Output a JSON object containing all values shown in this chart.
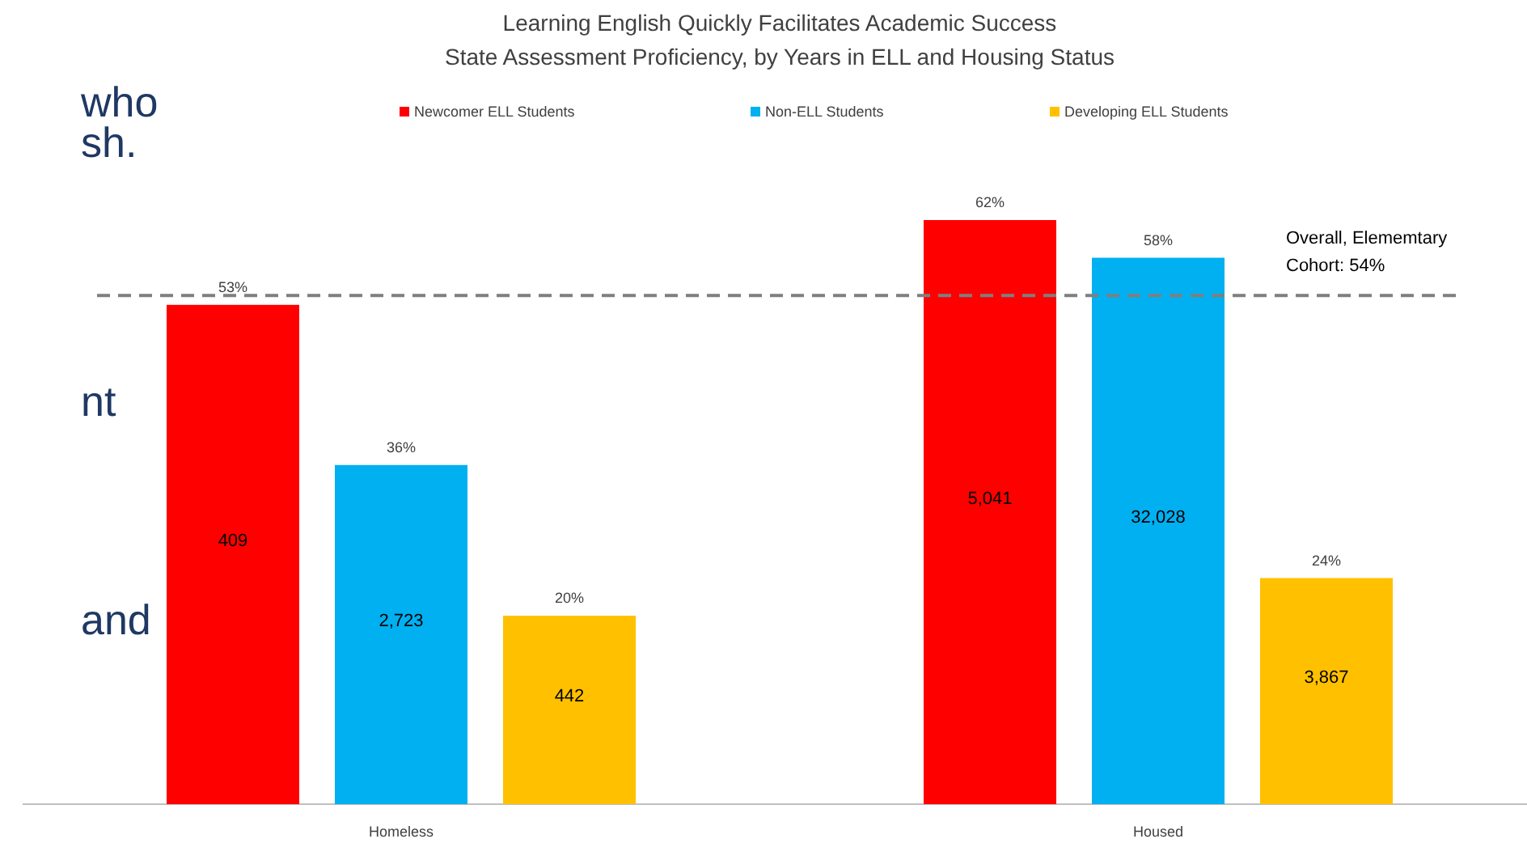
{
  "chart_data": {
    "type": "bar",
    "title": "Learning English Quickly Facilitates Academic Success",
    "subtitle": "State Assessment Proficiency, by Years in ELL and Housing Status",
    "categories": [
      "Homeless",
      "Housed"
    ],
    "series": [
      {
        "name": "Newcomer ELL Students",
        "color": "#ff0000",
        "values": [
          53,
          62
        ],
        "value_labels": [
          "53%",
          "62%"
        ]
      },
      {
        "name": "Non-ELL Students",
        "color": "#00b0f0",
        "values": [
          36,
          58
        ],
        "value_labels": [
          "36%",
          "58%"
        ]
      },
      {
        "name": "Developing ELL Students",
        "color": "#ffc000",
        "values": [
          20,
          24
        ],
        "value_labels": [
          "20%",
          "24%"
        ]
      }
    ],
    "legend": "top",
    "ref_lines": [
      {
        "axis": "y",
        "value": 54,
        "label": "Overall, Elememtary Cohort: 54%",
        "color": "#7f7f7f",
        "line_style": "dashed"
      }
    ],
    "annotations": [
      "409",
      "2,723",
      "442",
      "5,041",
      "32,028",
      "3,867",
      "who",
      "sh.",
      "nt",
      "and"
    ]
  }
}
